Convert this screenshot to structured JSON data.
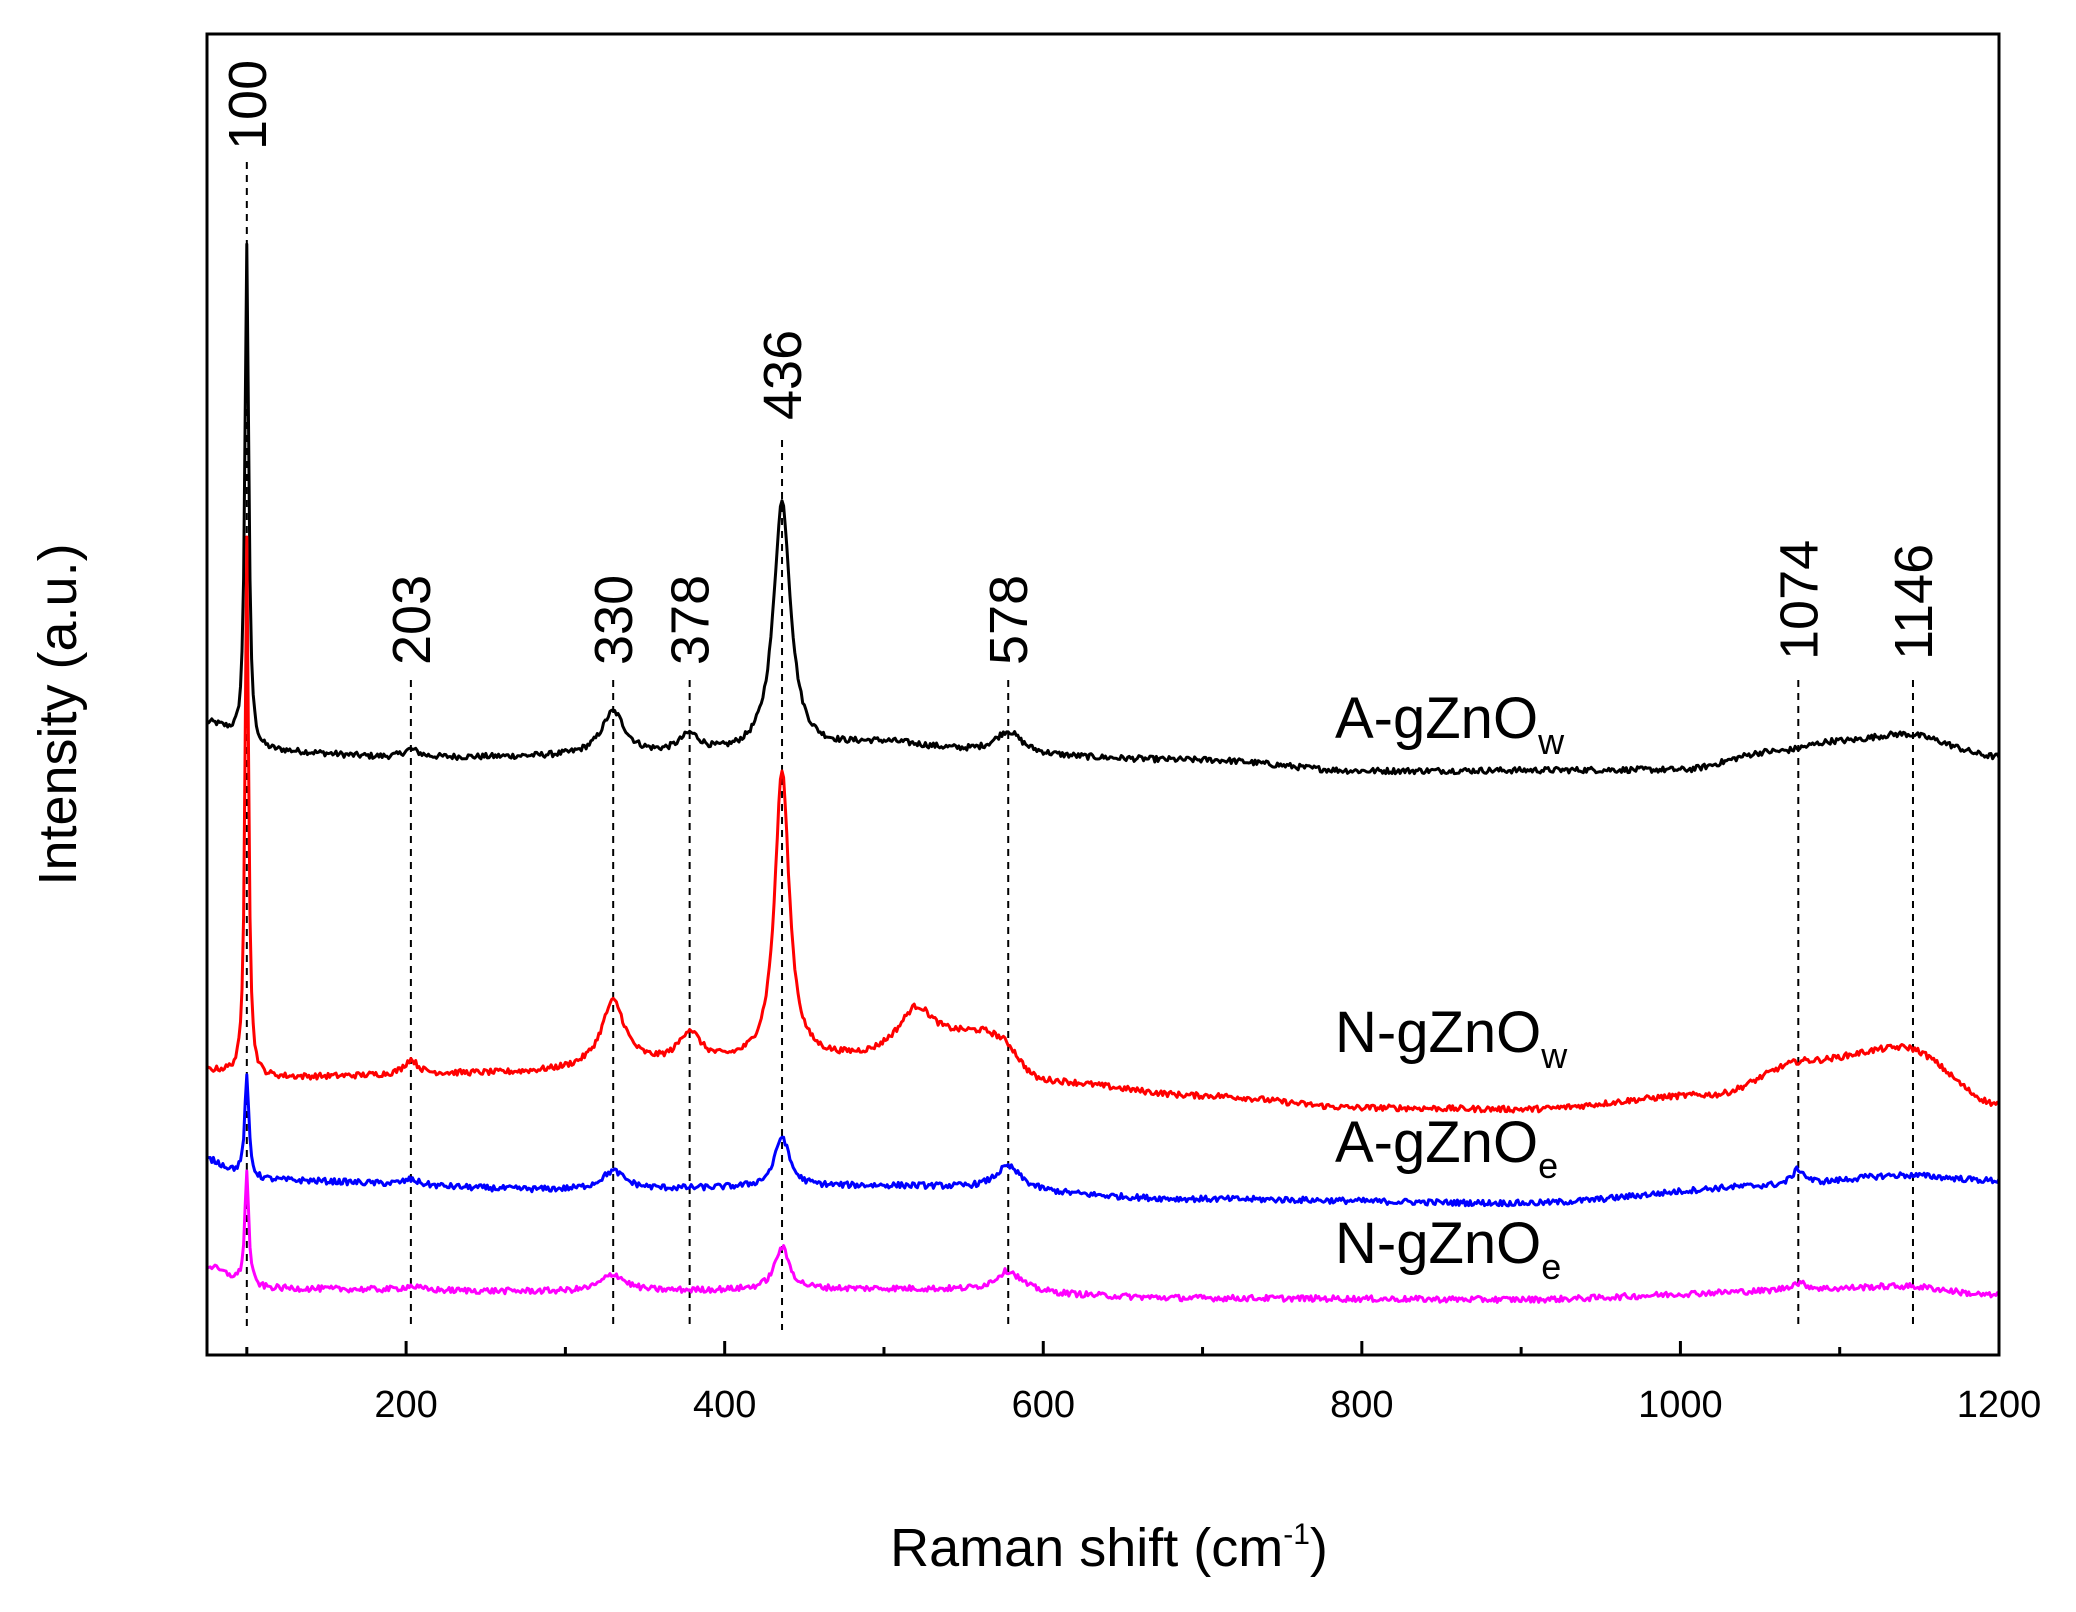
{
  "chart_data": {
    "type": "line",
    "title": "",
    "xlabel": "Raman shift (cm",
    "xlabel_sup": "-1",
    "xlabel_close": ")",
    "ylabel": "Intensity (a.u.)",
    "xlim": [
      75,
      1200
    ],
    "ylim": [
      0,
      100
    ],
    "x_ticks": [
      200,
      400,
      600,
      800,
      1000,
      1200
    ],
    "x_tick_labels": [
      "200",
      "400",
      "600",
      "800",
      "1000",
      "1200"
    ],
    "x_minor_ticks": [
      100,
      300,
      500,
      700,
      900,
      1100
    ],
    "y_ticks_shown": false,
    "grid": false,
    "peak_markers": [
      {
        "x": 100,
        "label": "100"
      },
      {
        "x": 203,
        "label": "203"
      },
      {
        "x": 330,
        "label": "330"
      },
      {
        "x": 378,
        "label": "378"
      },
      {
        "x": 436,
        "label": "436"
      },
      {
        "x": 578,
        "label": "578"
      },
      {
        "x": 1074,
        "label": "1074"
      },
      {
        "x": 1146,
        "label": "1146"
      }
    ],
    "series": [
      {
        "name": "A-gZnOw",
        "label_main": "A-gZnO",
        "label_sub": "w",
        "color": "#000000",
        "baseline": [
          [
            75,
            47.8
          ],
          [
            110,
            45.7
          ],
          [
            200,
            45.2
          ],
          [
            400,
            45.3
          ],
          [
            500,
            45.5
          ],
          [
            700,
            45.0
          ],
          [
            800,
            44.2
          ],
          [
            1000,
            44.3
          ],
          [
            1060,
            45.7
          ],
          [
            1100,
            46.5
          ],
          [
            1140,
            47.0
          ],
          [
            1200,
            45.3
          ]
        ],
        "peaks": [
          [
            100,
            38.0,
            1.4
          ],
          [
            203,
            0.6,
            6
          ],
          [
            330,
            3.3,
            9
          ],
          [
            378,
            1.4,
            8
          ],
          [
            436,
            19.0,
            6.5
          ],
          [
            500,
            0.8,
            40
          ],
          [
            578,
            1.7,
            10
          ]
        ]
      },
      {
        "name": "N-gZnOw",
        "label_main": "N-gZnO",
        "label_sub": "w",
        "color": "#ff0000",
        "baseline": [
          [
            75,
            21.5
          ],
          [
            110,
            21.0
          ],
          [
            250,
            21.3
          ],
          [
            400,
            22.0
          ],
          [
            490,
            22.3
          ],
          [
            505,
            22.5
          ],
          [
            560,
            24.0
          ],
          [
            600,
            20.6
          ],
          [
            700,
            19.6
          ],
          [
            800,
            18.7
          ],
          [
            900,
            18.6
          ],
          [
            1020,
            19.7
          ],
          [
            1080,
            22.3
          ],
          [
            1140,
            23.3
          ],
          [
            1200,
            19.0
          ]
        ],
        "peaks": [
          [
            100,
            41.0,
            1.3
          ],
          [
            203,
            1.1,
            5
          ],
          [
            330,
            5.0,
            9
          ],
          [
            378,
            2.3,
            8
          ],
          [
            436,
            22.0,
            5.5
          ],
          [
            520,
            3.5,
            14
          ],
          [
            578,
            0.8,
            10
          ]
        ]
      },
      {
        "name": "A-gZnOe",
        "label_main": "A-gZnO",
        "label_sub": "e",
        "color": "#0000ff",
        "baseline": [
          [
            75,
            14.0
          ],
          [
            110,
            13.2
          ],
          [
            300,
            12.5
          ],
          [
            500,
            12.8
          ],
          [
            700,
            11.8
          ],
          [
            900,
            11.5
          ],
          [
            1060,
            12.8
          ],
          [
            1140,
            13.6
          ],
          [
            1200,
            13.2
          ]
        ],
        "peaks": [
          [
            75,
            0.8,
            12
          ],
          [
            100,
            7.5,
            1.6
          ],
          [
            203,
            0.4,
            6
          ],
          [
            330,
            1.4,
            9
          ],
          [
            436,
            3.8,
            5.5
          ],
          [
            578,
            1.8,
            10
          ],
          [
            1074,
            1.2,
            5
          ]
        ]
      },
      {
        "name": "N-gZnOe",
        "label_main": "N-gZnO",
        "label_sub": "e",
        "color": "#ff00ff",
        "baseline": [
          [
            75,
            6.0
          ],
          [
            110,
            5.0
          ],
          [
            300,
            4.8
          ],
          [
            500,
            5.0
          ],
          [
            700,
            4.3
          ],
          [
            900,
            4.2
          ],
          [
            1060,
            4.8
          ],
          [
            1140,
            5.2
          ],
          [
            1200,
            4.5
          ]
        ],
        "peaks": [
          [
            75,
            0.7,
            12
          ],
          [
            100,
            8.5,
            1.5
          ],
          [
            203,
            0.3,
            6
          ],
          [
            330,
            1.3,
            9
          ],
          [
            436,
            3.2,
            5.5
          ],
          [
            578,
            1.6,
            10
          ],
          [
            1074,
            0.6,
            8
          ]
        ]
      }
    ]
  }
}
